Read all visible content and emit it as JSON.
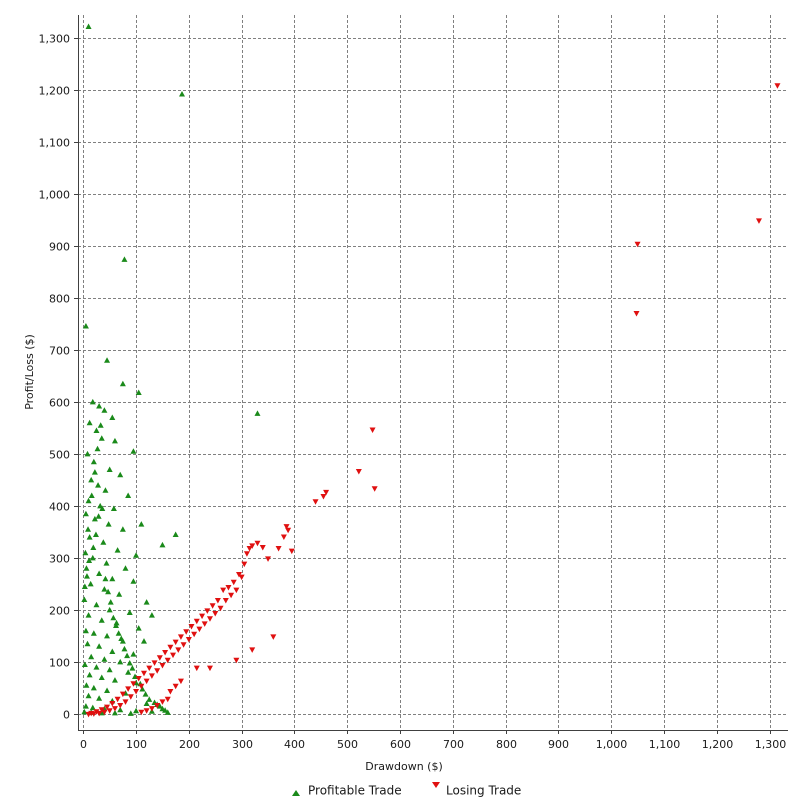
{
  "chart_data": {
    "type": "scatter",
    "title": "",
    "xlabel": "Drawdown ($)",
    "ylabel": "Profit/Loss ($)",
    "xlim": [
      -10,
      1335
    ],
    "ylim": [
      -30,
      1345
    ],
    "x_ticks": [
      0,
      100,
      200,
      300,
      400,
      500,
      600,
      700,
      800,
      900,
      1000,
      1100,
      1200,
      1300
    ],
    "x_tick_labels": [
      "0",
      "100",
      "200",
      "300",
      "400",
      "500",
      "600",
      "700",
      "800",
      "900",
      "1,000",
      "1,100",
      "1,200",
      "1,300"
    ],
    "y_ticks": [
      0,
      100,
      200,
      300,
      400,
      500,
      600,
      700,
      800,
      900,
      1000,
      1100,
      1200,
      1300
    ],
    "y_tick_labels": [
      "0",
      "100",
      "200",
      "300",
      "400",
      "500",
      "600",
      "700",
      "800",
      "900",
      "1,000",
      "1,100",
      "1,200",
      "1,300"
    ],
    "grid": true,
    "legend": "bottom",
    "series": [
      {
        "name": "Profitable Trade",
        "marker": "triangle-up",
        "color": "#1a8a1a",
        "points": [
          [
            10,
            1322
          ],
          [
            187,
            1192
          ],
          [
            78,
            874
          ],
          [
            5,
            746
          ],
          [
            45,
            680
          ],
          [
            75,
            635
          ],
          [
            105,
            618
          ],
          [
            330,
            578
          ],
          [
            18,
            600
          ],
          [
            30,
            592
          ],
          [
            40,
            584
          ],
          [
            55,
            570
          ],
          [
            12,
            560
          ],
          [
            25,
            545
          ],
          [
            35,
            530
          ],
          [
            60,
            525
          ],
          [
            95,
            505
          ],
          [
            8,
            500
          ],
          [
            20,
            485
          ],
          [
            50,
            470
          ],
          [
            70,
            460
          ],
          [
            15,
            450
          ],
          [
            28,
            440
          ],
          [
            42,
            430
          ],
          [
            85,
            420
          ],
          [
            10,
            410
          ],
          [
            32,
            400
          ],
          [
            58,
            395
          ],
          [
            5,
            385
          ],
          [
            22,
            375
          ],
          [
            48,
            365
          ],
          [
            110,
            365
          ],
          [
            75,
            355
          ],
          [
            175,
            345
          ],
          [
            150,
            325
          ],
          [
            12,
            340
          ],
          [
            38,
            330
          ],
          [
            65,
            315
          ],
          [
            100,
            305
          ],
          [
            18,
            300
          ],
          [
            44,
            290
          ],
          [
            80,
            280
          ],
          [
            6,
            280
          ],
          [
            30,
            270
          ],
          [
            55,
            260
          ],
          [
            95,
            255
          ],
          [
            14,
            250
          ],
          [
            40,
            240
          ],
          [
            68,
            230
          ],
          [
            120,
            215
          ],
          [
            2,
            220
          ],
          [
            25,
            210
          ],
          [
            50,
            200
          ],
          [
            88,
            195
          ],
          [
            130,
            190
          ],
          [
            10,
            190
          ],
          [
            35,
            180
          ],
          [
            62,
            170
          ],
          [
            105,
            165
          ],
          [
            5,
            160
          ],
          [
            20,
            155
          ],
          [
            45,
            150
          ],
          [
            75,
            140
          ],
          [
            115,
            140
          ],
          [
            8,
            135
          ],
          [
            30,
            130
          ],
          [
            55,
            120
          ],
          [
            95,
            115
          ],
          [
            15,
            110
          ],
          [
            40,
            105
          ],
          [
            70,
            100
          ],
          [
            3,
            95
          ],
          [
            25,
            90
          ],
          [
            50,
            85
          ],
          [
            85,
            80
          ],
          [
            12,
            75
          ],
          [
            35,
            70
          ],
          [
            60,
            65
          ],
          [
            100,
            60
          ],
          [
            6,
            55
          ],
          [
            20,
            50
          ],
          [
            45,
            45
          ],
          [
            80,
            40
          ],
          [
            10,
            35
          ],
          [
            30,
            30
          ],
          [
            55,
            25
          ],
          [
            120,
            20
          ],
          [
            140,
            18
          ],
          [
            5,
            15
          ],
          [
            18,
            12
          ],
          [
            40,
            10
          ],
          [
            70,
            8
          ],
          [
            100,
            6
          ],
          [
            130,
            5
          ],
          [
            2,
            4
          ],
          [
            15,
            3
          ],
          [
            35,
            2
          ],
          [
            60,
            2
          ],
          [
            90,
            1
          ],
          [
            160,
            3
          ],
          [
            4,
            310
          ],
          [
            9,
            355
          ],
          [
            16,
            420
          ],
          [
            22,
            465
          ],
          [
            27,
            510
          ],
          [
            33,
            555
          ],
          [
            3,
            245
          ],
          [
            7,
            265
          ],
          [
            11,
            295
          ],
          [
            19,
            320
          ],
          [
            24,
            345
          ],
          [
            29,
            380
          ],
          [
            36,
            395
          ],
          [
            42,
            260
          ],
          [
            47,
            235
          ],
          [
            52,
            215
          ],
          [
            57,
            185
          ],
          [
            63,
            175
          ],
          [
            67,
            155
          ],
          [
            72,
            145
          ],
          [
            78,
            125
          ],
          [
            83,
            112
          ],
          [
            88,
            98
          ],
          [
            93,
            88
          ],
          [
            98,
            72
          ],
          [
            108,
            58
          ],
          [
            112,
            48
          ],
          [
            118,
            38
          ],
          [
            125,
            28
          ],
          [
            135,
            22
          ],
          [
            145,
            15
          ],
          [
            150,
            10
          ],
          [
            155,
            7
          ]
        ]
      },
      {
        "name": "Losing Trade",
        "marker": "triangle-down",
        "color": "#e01010",
        "points": [
          [
            1315,
            1210
          ],
          [
            1280,
            950
          ],
          [
            1050,
            905
          ],
          [
            1048,
            772
          ],
          [
            548,
            548
          ],
          [
            552,
            435
          ],
          [
            522,
            468
          ],
          [
            460,
            428
          ],
          [
            455,
            420
          ],
          [
            440,
            410
          ],
          [
            385,
            362
          ],
          [
            388,
            355
          ],
          [
            395,
            315
          ],
          [
            360,
            150
          ],
          [
            320,
            125
          ],
          [
            305,
            290
          ],
          [
            295,
            270
          ],
          [
            285,
            255
          ],
          [
            275,
            245
          ],
          [
            265,
            240
          ],
          [
            255,
            220
          ],
          [
            245,
            210
          ],
          [
            235,
            200
          ],
          [
            225,
            190
          ],
          [
            215,
            180
          ],
          [
            205,
            170
          ],
          [
            195,
            160
          ],
          [
            185,
            150
          ],
          [
            175,
            140
          ],
          [
            165,
            130
          ],
          [
            155,
            120
          ],
          [
            145,
            110
          ],
          [
            135,
            100
          ],
          [
            125,
            90
          ],
          [
            115,
            80
          ],
          [
            105,
            70
          ],
          [
            95,
            60
          ],
          [
            85,
            50
          ],
          [
            75,
            40
          ],
          [
            65,
            30
          ],
          [
            55,
            22
          ],
          [
            45,
            15
          ],
          [
            35,
            10
          ],
          [
            25,
            6
          ],
          [
            15,
            3
          ],
          [
            290,
            105
          ],
          [
            240,
            90
          ],
          [
            215,
            90
          ],
          [
            185,
            65
          ],
          [
            175,
            55
          ],
          [
            165,
            45
          ],
          [
            160,
            30
          ],
          [
            150,
            25
          ],
          [
            140,
            18
          ],
          [
            130,
            12
          ],
          [
            120,
            8
          ],
          [
            110,
            5
          ],
          [
            310,
            310
          ],
          [
            315,
            320
          ],
          [
            320,
            325
          ],
          [
            330,
            330
          ],
          [
            340,
            322
          ],
          [
            350,
            300
          ],
          [
            370,
            320
          ],
          [
            380,
            342
          ],
          [
            300,
            265
          ],
          [
            290,
            240
          ],
          [
            280,
            230
          ],
          [
            270,
            220
          ],
          [
            260,
            205
          ],
          [
            250,
            195
          ],
          [
            240,
            185
          ],
          [
            230,
            175
          ],
          [
            220,
            165
          ],
          [
            210,
            155
          ],
          [
            200,
            145
          ],
          [
            190,
            135
          ],
          [
            180,
            125
          ],
          [
            170,
            115
          ],
          [
            160,
            105
          ],
          [
            150,
            95
          ],
          [
            140,
            85
          ],
          [
            130,
            75
          ],
          [
            120,
            65
          ],
          [
            110,
            55
          ],
          [
            100,
            45
          ],
          [
            90,
            35
          ],
          [
            80,
            25
          ],
          [
            70,
            18
          ],
          [
            60,
            12
          ],
          [
            50,
            8
          ],
          [
            40,
            5
          ],
          [
            30,
            3
          ],
          [
            20,
            2
          ],
          [
            10,
            1
          ]
        ]
      }
    ]
  }
}
